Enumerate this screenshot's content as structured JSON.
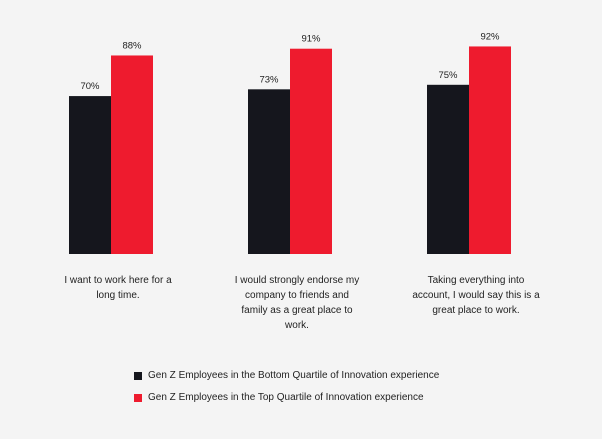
{
  "chart_data": {
    "type": "bar",
    "categories": [
      [
        "I want to work here for a",
        "long time."
      ],
      [
        "I would strongly endorse my",
        "company to friends and",
        "family as a great place to",
        "work."
      ],
      [
        "Taking everything into",
        "account, I would say this is a",
        "great place to work."
      ]
    ],
    "series": [
      {
        "name": "Gen Z Employees in the Bottom Quartile of Innovation experience",
        "color": "#15161d",
        "values": [
          70,
          73,
          75
        ],
        "labels": [
          "70%",
          "73%",
          "75%"
        ]
      },
      {
        "name": "Gen Z Employees in the Top Quartile of Innovation experience",
        "color": "#ee1b2e",
        "values": [
          88,
          91,
          92
        ],
        "labels": [
          "88%",
          "91%",
          "92%"
        ]
      }
    ],
    "title": "",
    "xlabel": "",
    "ylabel": "",
    "ylim": [
      0,
      100
    ],
    "grid": false,
    "legend_position": "bottom-left"
  }
}
